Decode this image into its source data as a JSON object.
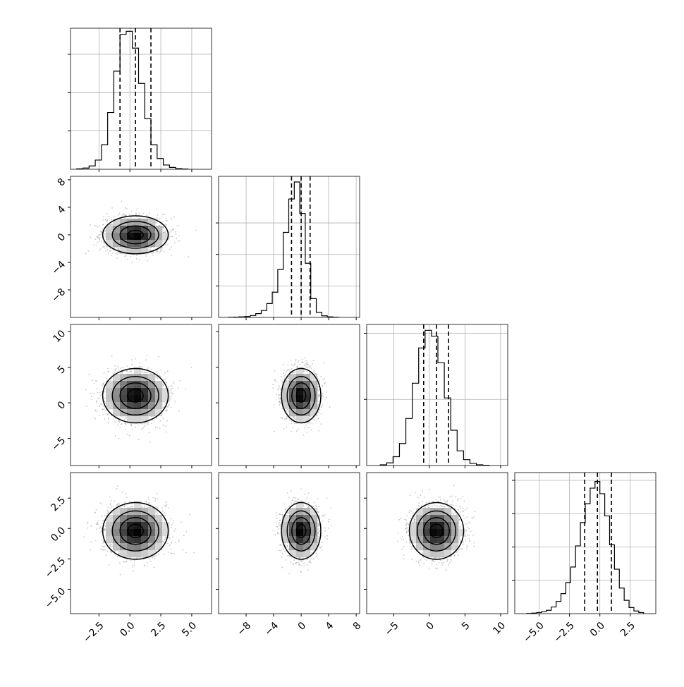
{
  "chart_data": {
    "type": "corner",
    "parameters": 4,
    "histogram_quantile_lines": "dashed",
    "grid": true,
    "axes": [
      {
        "name": "",
        "range": [
          -4.8,
          6.6
        ],
        "ticks": [
          -2.5,
          0.0,
          2.5,
          5.0
        ],
        "tick_labels": [
          "−2.5",
          "0.0",
          "2.5",
          "5.0"
        ],
        "quantiles": [
          -0.8,
          0.45,
          1.7
        ]
      },
      {
        "name": "",
        "range": [
          -12,
          8.5
        ],
        "ticks": [
          -8,
          -4,
          0,
          4,
          8
        ],
        "tick_labels": [
          "−8",
          "−4",
          "0",
          "4",
          "8"
        ],
        "quantiles": [
          -1.4,
          0.0,
          1.3
        ]
      },
      {
        "name": "",
        "range": [
          -8.8,
          11.0
        ],
        "ticks": [
          -5,
          0,
          5,
          10
        ],
        "tick_labels": [
          "−5",
          "0",
          "5",
          "10"
        ],
        "quantiles": [
          -0.8,
          1.0,
          2.7
        ]
      },
      {
        "name": "",
        "range": [
          -7.0,
          4.6
        ],
        "ticks": [
          -5.0,
          -2.5,
          0.0,
          2.5
        ],
        "tick_labels": [
          "−5.0",
          "−2.5",
          "0.0",
          "2.5"
        ],
        "quantiles": [
          -1.25,
          -0.2,
          0.95
        ]
      }
    ],
    "histograms": [
      {
        "bins": [
          -4.3,
          -3.8,
          -3.3,
          -2.8,
          -2.3,
          -1.8,
          -1.3,
          -0.8,
          -0.3,
          0.2,
          0.7,
          1.2,
          1.7,
          2.2,
          2.7,
          3.2,
          3.7,
          4.2,
          4.7
        ],
        "counts": [
          3,
          8,
          22,
          60,
          160,
          370,
          640,
          880,
          900,
          790,
          560,
          330,
          160,
          70,
          28,
          12,
          4,
          2
        ],
        "ymax": 920,
        "yticks": [
          250,
          500,
          750
        ]
      },
      {
        "bins": [
          -10.6,
          -9.8,
          -9.0,
          -8.2,
          -7.4,
          -6.6,
          -5.8,
          -5.0,
          -4.2,
          -3.4,
          -2.6,
          -1.8,
          -1.0,
          -0.2,
          0.6,
          1.4,
          2.2,
          3.0,
          3.8,
          4.6,
          5.4
        ],
        "counts": [
          2,
          5,
          8,
          14,
          30,
          60,
          110,
          220,
          400,
          760,
          1350,
          1880,
          2150,
          1650,
          860,
          300,
          80,
          25,
          8,
          3
        ],
        "ymax": 2240,
        "yticks": [
          500,
          1000,
          1500
        ]
      },
      {
        "bins": [
          -6.9,
          -6.0,
          -5.1,
          -4.2,
          -3.3,
          -2.4,
          -1.5,
          -0.6,
          0.3,
          1.2,
          2.1,
          3.0,
          3.9,
          4.8,
          5.7,
          6.6,
          7.5,
          8.4
        ],
        "counts": [
          5,
          18,
          60,
          150,
          320,
          560,
          800,
          920,
          880,
          700,
          460,
          240,
          100,
          40,
          14,
          5,
          2
        ],
        "ymax": 960,
        "yticks": [
          450,
          900
        ]
      },
      {
        "bins": [
          -6.0,
          -5.6,
          -5.2,
          -4.8,
          -4.4,
          -4.0,
          -3.6,
          -3.2,
          -2.8,
          -2.4,
          -2.0,
          -1.6,
          -1.2,
          -0.8,
          -0.4,
          0.0,
          0.4,
          0.8,
          1.2,
          1.6,
          2.0,
          2.4,
          2.8,
          3.2,
          3.6
        ],
        "counts": [
          2,
          5,
          10,
          18,
          30,
          60,
          110,
          180,
          280,
          420,
          610,
          820,
          990,
          1130,
          1190,
          1080,
          880,
          620,
          400,
          230,
          120,
          55,
          24,
          10
        ],
        "ymax": 1270,
        "yticks": [
          300,
          600,
          900,
          1200
        ]
      }
    ],
    "pairs": [
      {
        "x": 0,
        "y": 1,
        "center": [
          0.45,
          0.0
        ],
        "sd": [
          1.25,
          1.3
        ],
        "rho": 0.0
      },
      {
        "x": 0,
        "y": 2,
        "center": [
          0.45,
          1.0
        ],
        "sd": [
          1.25,
          1.8
        ],
        "rho": 0.0
      },
      {
        "x": 1,
        "y": 2,
        "center": [
          0.0,
          1.0
        ],
        "sd": [
          1.35,
          1.8
        ],
        "rho": 0.0
      },
      {
        "x": 0,
        "y": 3,
        "center": [
          0.45,
          -0.2
        ],
        "sd": [
          1.25,
          1.1
        ],
        "rho": 0.0
      },
      {
        "x": 1,
        "y": 3,
        "center": [
          0.0,
          -0.2
        ],
        "sd": [
          1.35,
          1.1
        ],
        "rho": 0.0
      },
      {
        "x": 2,
        "y": 3,
        "center": [
          1.0,
          -0.2
        ],
        "sd": [
          1.8,
          1.1
        ],
        "rho": 0.0
      }
    ],
    "contour_levels_sigma": [
      0.5,
      1.0,
      1.5,
      2.0
    ]
  }
}
